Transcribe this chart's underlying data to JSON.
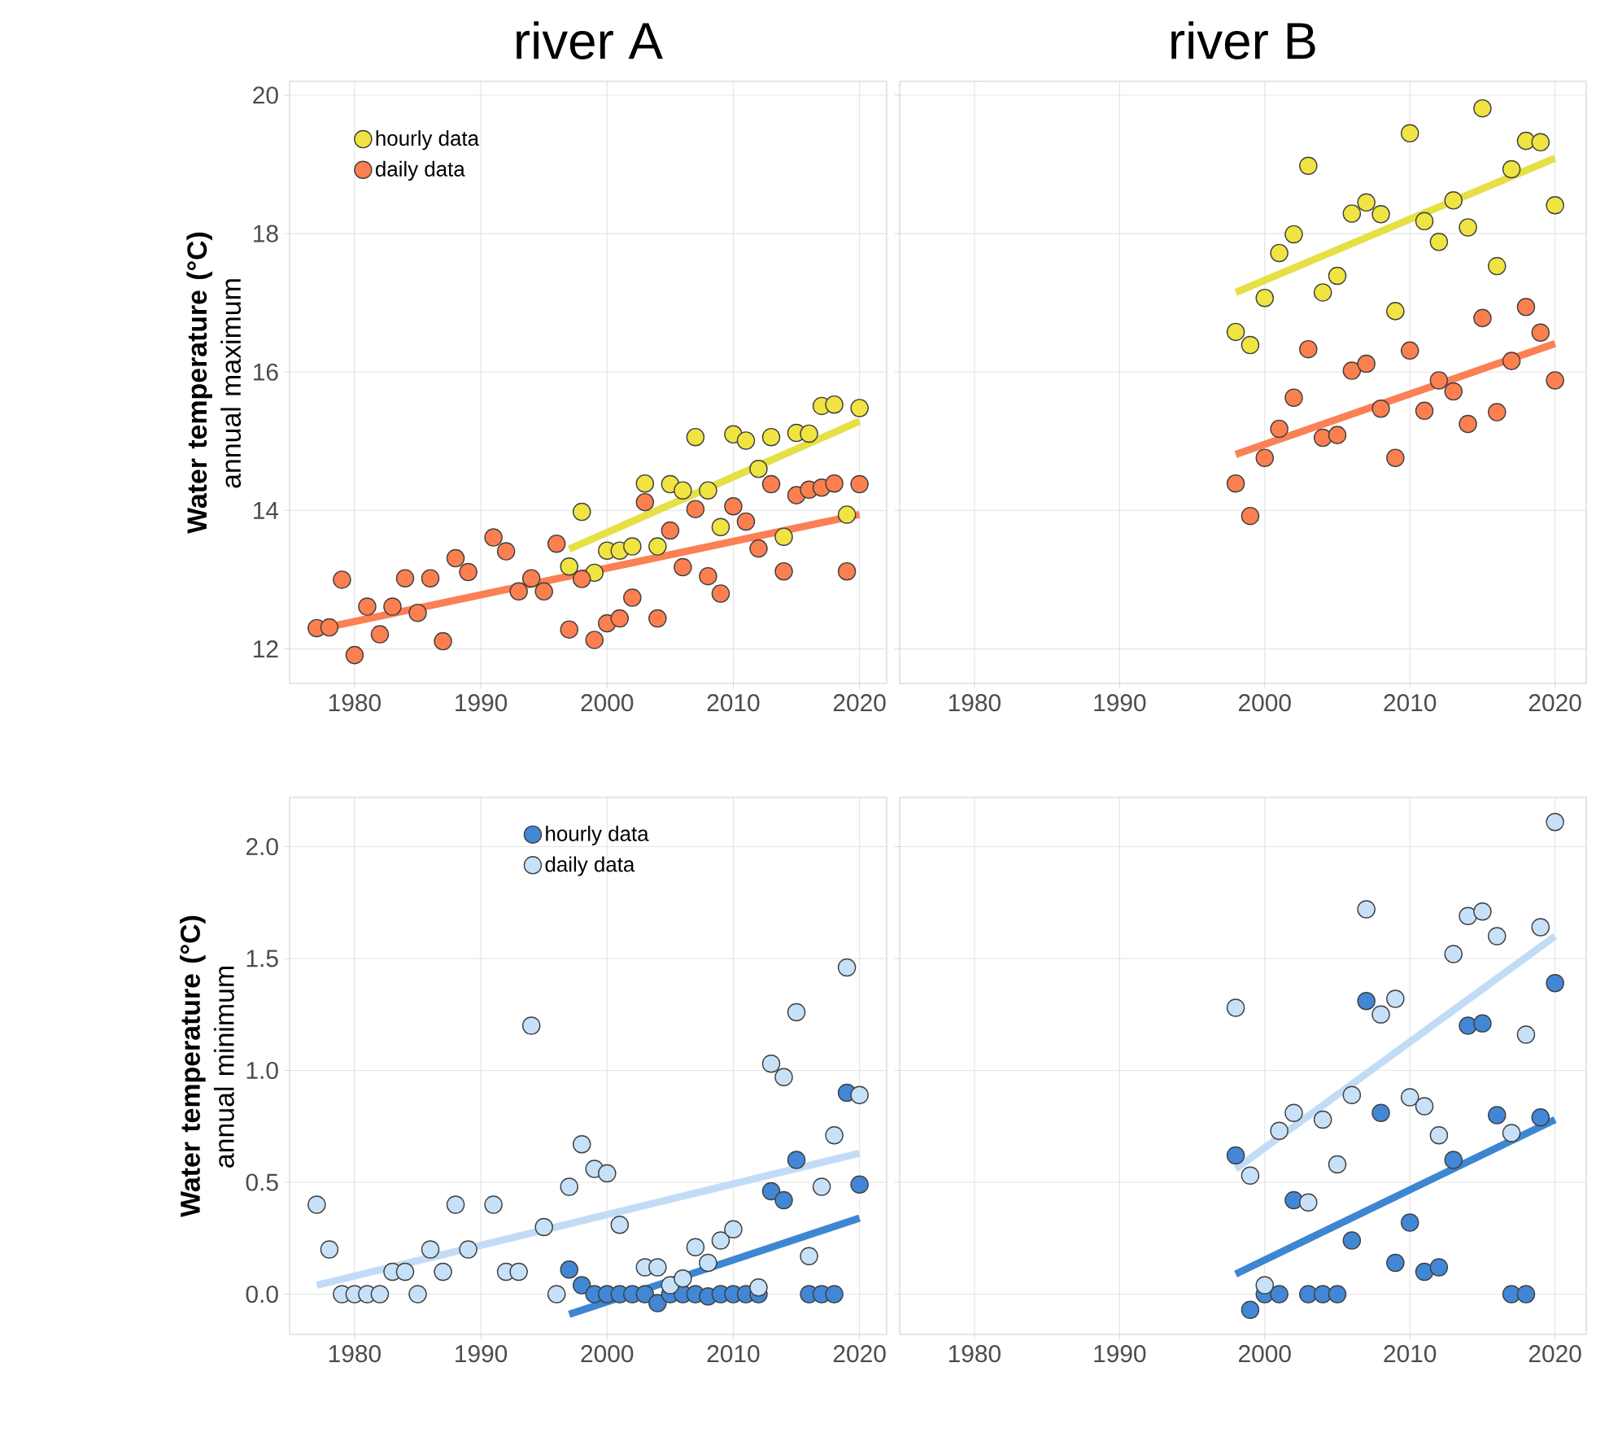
{
  "chart_data": [
    {
      "type": "scatter",
      "title": "river A",
      "ylabel": "**Water temperature (°C)** annual maximum",
      "xlim": [
        1974.85,
        2022.15
      ],
      "ylim": [
        11.5,
        20.2
      ],
      "xticks": [
        1980,
        1990,
        2000,
        2010,
        2020
      ],
      "yticks": [
        12,
        14,
        16,
        18,
        20
      ],
      "grid": true,
      "legend": "top left",
      "marker": "circle",
      "line_style": "solid",
      "series": [
        {
          "name": "hourly data",
          "color": "#f0e442",
          "x": [
            1997,
            1998,
            1999,
            2000,
            2001,
            2002,
            2003,
            2004,
            2005,
            2006,
            2007,
            2008,
            2009,
            2010,
            2011,
            2012,
            2013,
            2014,
            2015,
            2016,
            2017,
            2018,
            2019,
            2020
          ],
          "values": [
            13.19,
            13.98,
            13.1,
            13.42,
            13.42,
            13.48,
            14.39,
            13.48,
            14.38,
            14.29,
            15.06,
            14.29,
            13.76,
            15.1,
            15.01,
            14.6,
            15.06,
            13.62,
            15.12,
            15.11,
            15.51,
            15.53,
            13.94,
            15.48
          ]
        },
        {
          "name": "daily data",
          "color": "#fc7f50",
          "x": [
            1977,
            1978,
            1979,
            1980,
            1981,
            1982,
            1983,
            1984,
            1985,
            1986,
            1987,
            1988,
            1989,
            1991,
            1992,
            1993,
            1994,
            1995,
            1996,
            1997,
            1998,
            1999,
            2000,
            2001,
            2002,
            2003,
            2004,
            2005,
            2006,
            2007,
            2008,
            2009,
            2010,
            2011,
            2012,
            2013,
            2014,
            2015,
            2016,
            2017,
            2018,
            2019,
            2020
          ],
          "values": [
            12.3,
            12.31,
            13.0,
            11.91,
            12.61,
            12.21,
            12.61,
            13.02,
            12.52,
            13.02,
            12.11,
            13.31,
            13.11,
            13.61,
            13.41,
            12.83,
            13.02,
            12.83,
            13.52,
            12.28,
            13.01,
            12.13,
            12.37,
            12.44,
            12.74,
            14.12,
            12.44,
            13.71,
            13.18,
            14.02,
            13.05,
            12.8,
            14.06,
            13.84,
            13.45,
            14.38,
            13.12,
            14.22,
            14.3,
            14.33,
            14.39,
            13.12,
            14.38
          ]
        },
        {
          "type": "line",
          "marker": "none",
          "color": "#e6e045",
          "x": [
            1997,
            2020
          ],
          "values": [
            13.44,
            15.29
          ]
        },
        {
          "type": "line",
          "marker": "none",
          "color": "#fb8055",
          "x": [
            1977,
            2020
          ],
          "values": [
            12.28,
            13.94
          ]
        }
      ]
    },
    {
      "type": "scatter",
      "title": "river B",
      "xlim": [
        1974.85,
        2022.15
      ],
      "ylim": [
        11.5,
        20.2
      ],
      "xticks": [
        1980,
        1990,
        2000,
        2010,
        2020
      ],
      "yticks": [
        12,
        14,
        16,
        18,
        20
      ],
      "grid": true,
      "tick_labels": "x",
      "marker": "circle",
      "line_style": "solid",
      "series": [
        {
          "color": "#f0e442",
          "x": [
            1998,
            1999,
            2000,
            2001,
            2002,
            2003,
            2004,
            2005,
            2006,
            2007,
            2008,
            2009,
            2010,
            2011,
            2012,
            2013,
            2014,
            2015,
            2016,
            2017,
            2018,
            2019,
            2020
          ],
          "values": [
            16.58,
            16.39,
            17.07,
            17.72,
            17.99,
            18.98,
            17.15,
            17.39,
            18.29,
            18.45,
            18.28,
            16.88,
            19.45,
            18.18,
            17.88,
            18.48,
            18.09,
            19.81,
            17.53,
            18.93,
            19.34,
            19.32,
            18.41
          ]
        },
        {
          "color": "#fc7f50",
          "x": [
            1998,
            1999,
            2000,
            2001,
            2002,
            2003,
            2004,
            2005,
            2006,
            2007,
            2008,
            2009,
            2010,
            2011,
            2012,
            2013,
            2014,
            2015,
            2016,
            2017,
            2018,
            2019,
            2020
          ],
          "values": [
            14.39,
            13.92,
            14.76,
            15.18,
            15.63,
            16.33,
            15.05,
            15.09,
            16.02,
            16.12,
            15.47,
            14.76,
            16.31,
            15.44,
            15.88,
            15.72,
            15.25,
            16.78,
            15.42,
            16.16,
            16.94,
            16.57,
            15.88
          ]
        },
        {
          "type": "line",
          "marker": "none",
          "color": "#e6e045",
          "x": [
            1998,
            2020
          ],
          "values": [
            17.15,
            19.09
          ]
        },
        {
          "type": "line",
          "marker": "none",
          "color": "#fb8055",
          "x": [
            1998,
            2020
          ],
          "values": [
            14.81,
            16.41
          ]
        }
      ]
    },
    {
      "type": "scatter",
      "ylabel": "**Water temperature (°C)** annual minimum",
      "xlim": [
        1974.85,
        2022.15
      ],
      "ylim": [
        -0.18,
        2.22
      ],
      "xticks": [
        1980,
        1990,
        2000,
        2010,
        2020
      ],
      "yticks": [
        {
          "value": 0,
          "label": "0.0"
        },
        {
          "value": 0.5,
          "label": "0.5"
        },
        {
          "value": 1,
          "label": "1.0"
        },
        {
          "value": 1.5,
          "label": "1.5"
        },
        {
          "value": 2,
          "label": "2.0"
        }
      ],
      "grid": true,
      "legend": "top",
      "marker": "circle",
      "line_style": "solid",
      "series": [
        {
          "name": "hourly data",
          "color": "#4287d6",
          "x": [
            1997,
            1998,
            1999,
            2000,
            2001,
            2002,
            2003,
            2004,
            2005,
            2006,
            2007,
            2008,
            2009,
            2010,
            2011,
            2012,
            2013,
            2014,
            2015,
            2016,
            2017,
            2018,
            2019,
            2020
          ],
          "values": [
            0.11,
            0.04,
            0,
            0,
            0,
            0,
            0,
            -0.04,
            0,
            0,
            0,
            -0.01,
            0,
            0,
            0,
            0,
            0.46,
            0.42,
            0.6,
            0,
            0,
            0,
            0.9,
            0.49
          ]
        },
        {
          "name": "daily data",
          "color": "#c7e1f8",
          "x": [
            1977,
            1978,
            1979,
            1980,
            1981,
            1982,
            1983,
            1984,
            1985,
            1986,
            1987,
            1988,
            1989,
            1991,
            1992,
            1993,
            1994,
            1995,
            1996,
            1997,
            1998,
            1999,
            2000,
            2001,
            2003,
            2004,
            2005,
            2006,
            2007,
            2008,
            2009,
            2010,
            2012,
            2013,
            2014,
            2015,
            2016,
            2017,
            2018,
            2019,
            2020
          ],
          "values": [
            0.4,
            0.2,
            0,
            0,
            0,
            0,
            0.1,
            0.1,
            0,
            0.2,
            0.1,
            0.4,
            0.2,
            0.4,
            0.1,
            0.1,
            1.2,
            0.3,
            0,
            0.48,
            0.67,
            0.56,
            0.54,
            0.31,
            0.12,
            0.12,
            0.04,
            0.07,
            0.21,
            0.14,
            0.24,
            0.29,
            0.03,
            1.03,
            0.97,
            1.26,
            0.17,
            0.48,
            0.71,
            1.46,
            0.89
          ]
        },
        {
          "type": "line",
          "marker": "none",
          "color": "#3d86d2",
          "x": [
            1997,
            2020
          ],
          "values": [
            -0.09,
            0.34
          ]
        },
        {
          "type": "line",
          "marker": "none",
          "color": "#c2dcf6",
          "x": [
            1977,
            2020
          ],
          "values": [
            0.04,
            0.63
          ]
        }
      ]
    },
    {
      "type": "scatter",
      "xlim": [
        1974.85,
        2022.15
      ],
      "ylim": [
        -0.18,
        2.22
      ],
      "xticks": [
        1980,
        1990,
        2000,
        2010,
        2020
      ],
      "yticks": [
        0,
        0.5,
        1,
        1.5,
        2
      ],
      "grid": true,
      "tick_labels": "x",
      "marker": "circle",
      "line_style": "solid",
      "series": [
        {
          "color": "#4287d6",
          "x": [
            1998,
            1999,
            2000,
            2001,
            2002,
            2003,
            2004,
            2005,
            2006,
            2007,
            2008,
            2009,
            2010,
            2011,
            2012,
            2013,
            2014,
            2015,
            2016,
            2017,
            2018,
            2019,
            2020
          ],
          "values": [
            0.62,
            -0.07,
            0,
            0,
            0.42,
            0,
            0,
            0,
            0.24,
            1.31,
            0.81,
            0.14,
            0.32,
            0.1,
            0.12,
            0.6,
            1.2,
            1.21,
            0.8,
            0,
            0,
            0.79,
            1.39
          ]
        },
        {
          "color": "#c7e1f8",
          "x": [
            1998,
            1999,
            2000,
            2001,
            2002,
            2003,
            2004,
            2005,
            2006,
            2007,
            2008,
            2009,
            2010,
            2011,
            2012,
            2013,
            2014,
            2015,
            2016,
            2017,
            2018,
            2019,
            2020
          ],
          "values": [
            1.28,
            0.53,
            0.04,
            0.73,
            0.81,
            0.41,
            0.78,
            0.58,
            0.89,
            1.72,
            1.25,
            1.32,
            0.88,
            0.84,
            0.71,
            1.52,
            1.69,
            1.71,
            1.6,
            0.72,
            1.16,
            1.64,
            2.11
          ]
        },
        {
          "type": "line",
          "marker": "none",
          "color": "#3d86d2",
          "x": [
            1998,
            2020
          ],
          "values": [
            0.09,
            0.78
          ]
        },
        {
          "type": "line",
          "marker": "none",
          "color": "#c2dcf6",
          "x": [
            1998,
            2020
          ],
          "values": [
            0.56,
            1.6
          ]
        }
      ]
    }
  ]
}
